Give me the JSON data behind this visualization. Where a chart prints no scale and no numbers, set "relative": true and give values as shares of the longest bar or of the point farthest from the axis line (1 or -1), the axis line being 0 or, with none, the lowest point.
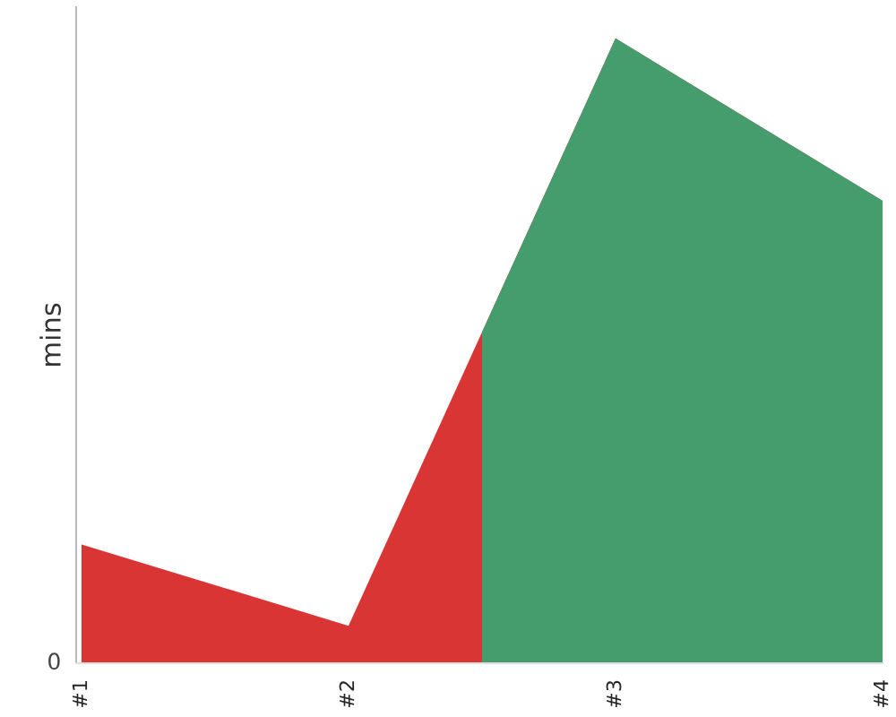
{
  "chart_data": {
    "type": "area",
    "relative": true,
    "ylabel": "mins",
    "categories": [
      "#1",
      "#2",
      "#3",
      "#4"
    ],
    "series": [
      {
        "values": [
          0.19,
          0.06,
          1,
          0.74
        ],
        "colors": [
          "#d93535",
          "#d93535",
          "#459c6d",
          "#459c6d"
        ]
      }
    ],
    "annotations": [
      "0"
    ],
    "grid": false,
    "legend": false
  }
}
